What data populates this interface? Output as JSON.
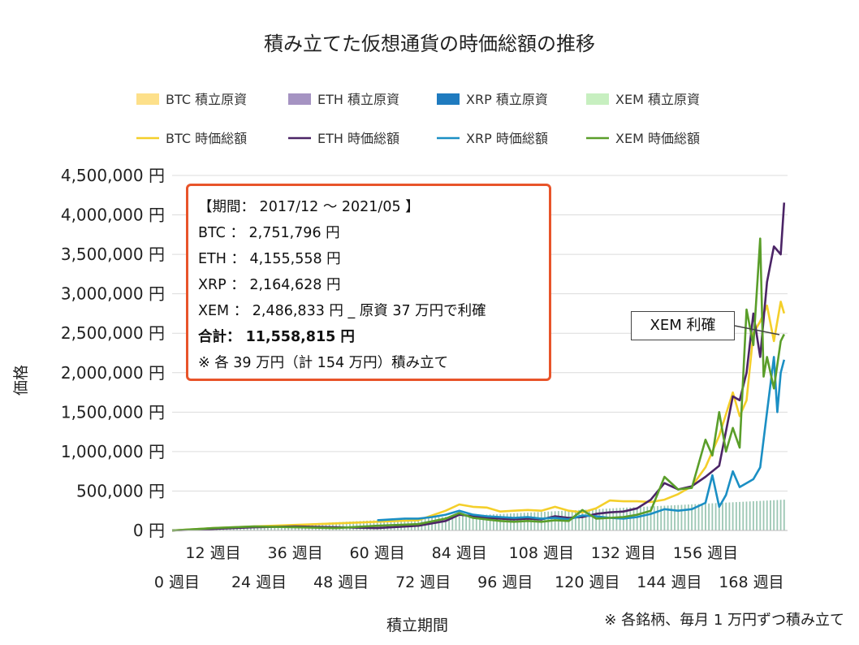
{
  "chart_data": {
    "type": "line",
    "title": "積み立てた仮想通貨の時価総額の推移",
    "xlabel": "積立期間",
    "ylabel": "価格",
    "ylim": [
      0,
      4500000
    ],
    "yticks": [
      "0 円",
      "500,000 円",
      "1,000,000 円",
      "1,500,000 円",
      "2,000,000 円",
      "2,500,000 円",
      "3,000,000 円",
      "3,500,000 円",
      "4,000,000 円",
      "4,500,000 円"
    ],
    "ytick_values": [
      0,
      500000,
      1000000,
      1500000,
      2000000,
      2500000,
      3000000,
      3500000,
      4000000,
      4500000
    ],
    "xlim": [
      0,
      180
    ],
    "xticks_top": [
      {
        "label": "12 週目",
        "week": 12
      },
      {
        "label": "36 週目",
        "week": 36
      },
      {
        "label": "60 週目",
        "week": 60
      },
      {
        "label": "84 週目",
        "week": 84
      },
      {
        "label": "108 週目",
        "week": 108
      },
      {
        "label": "132 週目",
        "week": 132
      },
      {
        "label": "156 週目",
        "week": 156
      }
    ],
    "xticks_bottom": [
      {
        "label": "0 週目",
        "week": 0
      },
      {
        "label": "24 週目",
        "week": 24
      },
      {
        "label": "48 週目",
        "week": 48
      },
      {
        "label": "72 週目",
        "week": 72
      },
      {
        "label": "96 週目",
        "week": 96
      },
      {
        "label": "120 週目",
        "week": 120
      },
      {
        "label": "144 週目",
        "week": 144
      },
      {
        "label": "168 週目",
        "week": 168
      }
    ],
    "legend": [
      {
        "label": "BTC  積立原資",
        "kind": "bar",
        "color": "#fde08a"
      },
      {
        "label": "ETH  積立原資",
        "kind": "bar",
        "color": "#a593c2"
      },
      {
        "label": "XRP  積立原資",
        "kind": "bar",
        "color": "#1f7bbf"
      },
      {
        "label": "XEM  積立原資",
        "kind": "bar",
        "color": "#c7efc0"
      },
      {
        "label": "BTC  時価総額",
        "kind": "line",
        "color": "#f4cf2a"
      },
      {
        "label": "ETH  時価総額",
        "kind": "line",
        "color": "#4b2466"
      },
      {
        "label": "XRP  時価総額",
        "kind": "line",
        "color": "#1b8fc4"
      },
      {
        "label": "XEM  時価総額",
        "kind": "line",
        "color": "#5a9e2a"
      }
    ],
    "bars": {
      "color": "#9cc7b4",
      "start_week": 0,
      "end_week": 179,
      "start_value": 0,
      "end_value": 390000
    },
    "series": [
      {
        "name": "BTC  時価総額",
        "color": "#f4cf2a",
        "x": [
          0,
          12,
          24,
          36,
          48,
          60,
          72,
          80,
          84,
          88,
          92,
          96,
          100,
          104,
          108,
          112,
          116,
          120,
          124,
          128,
          132,
          136,
          140,
          144,
          148,
          152,
          156,
          160,
          164,
          166,
          168,
          170,
          172,
          174,
          176,
          178,
          179
        ],
        "values": [
          0,
          30000,
          50000,
          70000,
          90000,
          110000,
          130000,
          250000,
          330000,
          300000,
          290000,
          240000,
          250000,
          260000,
          250000,
          300000,
          250000,
          230000,
          280000,
          380000,
          370000,
          370000,
          360000,
          390000,
          460000,
          560000,
          800000,
          1200000,
          1750000,
          1450000,
          1650000,
          2500000,
          2650000,
          2850000,
          2400000,
          2900000,
          2751796
        ]
      },
      {
        "name": "ETH  時価総額",
        "color": "#4b2466",
        "x": [
          0,
          12,
          24,
          36,
          48,
          60,
          72,
          80,
          84,
          88,
          92,
          96,
          100,
          104,
          108,
          112,
          116,
          120,
          124,
          128,
          132,
          136,
          140,
          144,
          148,
          152,
          156,
          160,
          164,
          166,
          168,
          170,
          172,
          174,
          176,
          178,
          179
        ],
        "values": [
          0,
          20000,
          40000,
          50000,
          40000,
          30000,
          60000,
          120000,
          200000,
          180000,
          160000,
          150000,
          140000,
          150000,
          140000,
          180000,
          160000,
          170000,
          210000,
          230000,
          240000,
          280000,
          390000,
          600000,
          520000,
          560000,
          680000,
          820000,
          1700000,
          1650000,
          2000000,
          2750000,
          2200000,
          3150000,
          3600000,
          3500000,
          4155558
        ]
      },
      {
        "name": "XRP  時価総額",
        "color": "#1b8fc4",
        "x": [
          60,
          64,
          68,
          72,
          76,
          80,
          84,
          88,
          92,
          96,
          100,
          104,
          108,
          112,
          116,
          120,
          124,
          128,
          132,
          136,
          140,
          144,
          148,
          152,
          156,
          158,
          160,
          162,
          164,
          166,
          168,
          170,
          172,
          174,
          176,
          177,
          178,
          179
        ],
        "values": [
          130000,
          140000,
          150000,
          150000,
          170000,
          200000,
          250000,
          200000,
          180000,
          170000,
          160000,
          170000,
          150000,
          160000,
          140000,
          190000,
          180000,
          160000,
          150000,
          170000,
          210000,
          270000,
          250000,
          270000,
          350000,
          700000,
          300000,
          450000,
          750000,
          550000,
          600000,
          650000,
          800000,
          1500000,
          2200000,
          1500000,
          2000000,
          2164628
        ]
      },
      {
        "name": "XEM  時価総額",
        "color": "#5a9e2a",
        "x": [
          0,
          12,
          24,
          36,
          48,
          60,
          72,
          80,
          84,
          88,
          92,
          96,
          100,
          104,
          108,
          112,
          116,
          120,
          124,
          128,
          132,
          136,
          140,
          144,
          148,
          152,
          156,
          158,
          160,
          162,
          164,
          166,
          168,
          170,
          172,
          173,
          174,
          176,
          178,
          179
        ],
        "values": [
          0,
          30000,
          50000,
          40000,
          30000,
          60000,
          80000,
          150000,
          220000,
          160000,
          140000,
          120000,
          110000,
          120000,
          110000,
          130000,
          120000,
          260000,
          150000,
          160000,
          170000,
          200000,
          250000,
          680000,
          520000,
          540000,
          1150000,
          950000,
          1500000,
          1000000,
          1300000,
          1050000,
          2800000,
          2350000,
          3700000,
          1950000,
          2200000,
          1800000,
          2400000,
          2486833
        ]
      }
    ],
    "annotations": {
      "info_box": {
        "period": "【期間： 2017/12 ～ 2021/05 】",
        "btc": "BTC ： 2,751,796 円",
        "eth": "ETH ： 4,155,558 円",
        "xrp": "XRP ： 2,164,628 円",
        "xem": "XEM ： 2,486,833 円 _ 原資 37 万円で利確",
        "total": "合計： 11,558,815 円",
        "note": "※ 各 39 万円（計 154 万円）積み立て"
      },
      "callout": "XEM 利確",
      "footnote": "※ 各銘柄、毎月 1 万円ずつ積み立て"
    }
  }
}
